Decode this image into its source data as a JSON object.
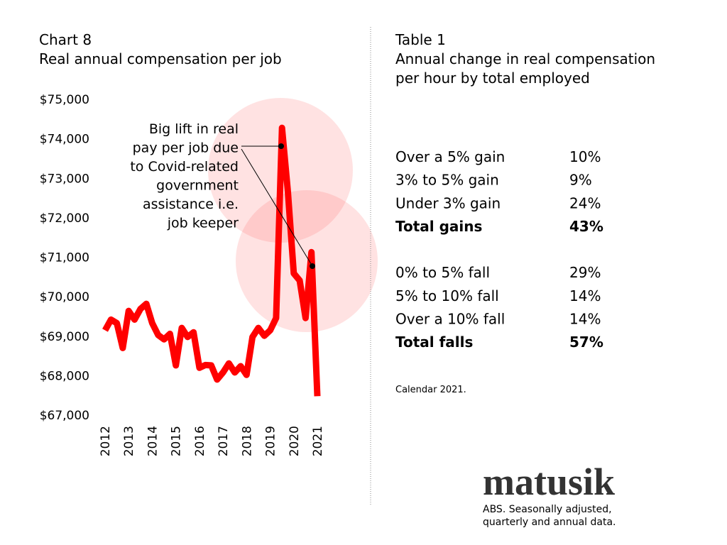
{
  "chart_data": {
    "type": "line",
    "title": "Chart 8",
    "subtitle": "Real annual compensation per job",
    "categories": [
      "2012",
      null,
      null,
      null,
      "2013",
      null,
      null,
      null,
      "2014",
      null,
      null,
      null,
      "2015",
      null,
      null,
      null,
      "2016",
      null,
      null,
      null,
      "2017",
      null,
      null,
      null,
      "2018",
      null,
      null,
      null,
      "2019",
      null,
      null,
      null,
      "2020",
      null,
      null,
      null,
      "2021"
    ],
    "values": [
      69150,
      69420,
      69330,
      68700,
      69640,
      69420,
      69690,
      69820,
      69330,
      69030,
      68920,
      69060,
      68260,
      69210,
      68980,
      69100,
      68200,
      68270,
      68260,
      67900,
      68080,
      68310,
      68080,
      68240,
      68020,
      68980,
      69210,
      69010,
      69150,
      69460,
      74280,
      72660,
      70590,
      70410,
      69460,
      71130,
      67480
    ],
    "color": "#ff0000",
    "ylim": [
      67000,
      75000
    ],
    "yticks": [
      {
        "value": 67000,
        "label": "$67,000"
      },
      {
        "value": 68000,
        "label": "$68,000"
      },
      {
        "value": 69000,
        "label": "$69,000"
      },
      {
        "value": 70000,
        "label": "$70,000"
      },
      {
        "value": 71000,
        "label": "$71,000"
      },
      {
        "value": 72000,
        "label": "$72,000"
      },
      {
        "value": 73000,
        "label": "$73,000"
      },
      {
        "value": 74000,
        "label": "$74,000"
      },
      {
        "value": 75000,
        "label": "$75,000"
      }
    ],
    "grid": false,
    "annotation": [
      "Big lift in real",
      "pay per job due",
      "to Covid-related",
      "government",
      "assistance i.e.",
      "job keeper"
    ]
  },
  "table": {
    "title": "Table 1",
    "subtitle": [
      "Annual change in real compensation",
      "per hour by total employed"
    ],
    "sections": [
      {
        "rows": [
          [
            "Over a 5% gain",
            "10%"
          ],
          [
            "3% to 5% gain",
            "9%"
          ],
          [
            "Under 3% gain",
            "24%"
          ]
        ],
        "total": [
          "Total gains",
          "43%"
        ]
      },
      {
        "rows": [
          [
            "0% to 5% fall",
            "29%"
          ],
          [
            "5% to 10% fall",
            "14%"
          ],
          [
            "Over a 10% fall",
            "14%"
          ]
        ],
        "total": [
          "Total falls",
          "57%"
        ]
      }
    ],
    "note": "Calendar 2021."
  },
  "footer": {
    "logo": "matusik",
    "source": [
      "ABS.  Seasonally adjusted,",
      "quarterly and annual data."
    ]
  }
}
